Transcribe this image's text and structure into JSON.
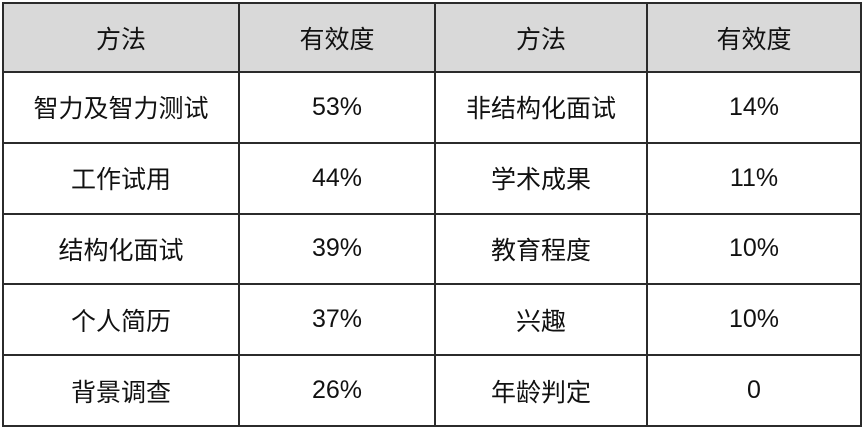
{
  "headers": [
    "方法",
    "有效度",
    "方法",
    "有效度"
  ],
  "rows": [
    {
      "method_left": "智力及智力测试",
      "validity_left": "53%",
      "method_right": "非结构化面试",
      "validity_right": "14%"
    },
    {
      "method_left": "工作试用",
      "validity_left": "44%",
      "method_right": "学术成果",
      "validity_right": "11%"
    },
    {
      "method_left": "结构化面试",
      "validity_left": "39%",
      "method_right": "教育程度",
      "validity_right": "10%"
    },
    {
      "method_left": "个人简历",
      "validity_left": "37%",
      "method_right": "兴趣",
      "validity_right": "10%"
    },
    {
      "method_left": "背景调查",
      "validity_left": "26%",
      "method_right": "年龄判定",
      "validity_right": "0"
    }
  ]
}
